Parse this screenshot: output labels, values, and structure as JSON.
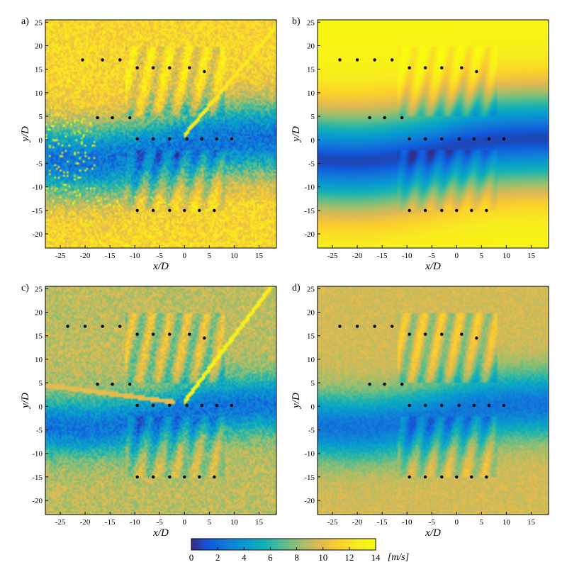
{
  "chart_data": {
    "type": "heatmap",
    "colormap": "parula",
    "colorbar": {
      "ticks": [
        "0",
        "2",
        "4",
        "6",
        "8",
        "10",
        "12",
        "14"
      ],
      "range": [
        0,
        14
      ],
      "unit_label": "[m/s]"
    },
    "shared_axes": {
      "xlabel": "x/D",
      "ylabel": "y/D",
      "xlim": [
        -28,
        18.5
      ],
      "ylim": [
        -23,
        25.5
      ],
      "xticks": [
        -25,
        -20,
        -15,
        -10,
        -5,
        0,
        5,
        10,
        15
      ],
      "yticks": [
        -20,
        -15,
        -10,
        -5,
        0,
        5,
        10,
        15,
        20,
        25
      ]
    },
    "panels": [
      {
        "label": "a)",
        "variant": "noisy-wide",
        "turbines": [
          [
            -20.5,
            17
          ],
          [
            -16.5,
            17
          ],
          [
            -13,
            17
          ],
          [
            -9.5,
            15.3
          ],
          [
            -6.3,
            15.3
          ],
          [
            -3,
            15.3
          ],
          [
            1,
            15.3
          ],
          [
            4,
            14.5
          ],
          [
            -17.5,
            4.7
          ],
          [
            -14.5,
            4.7
          ],
          [
            -11,
            4.7
          ],
          [
            -9.5,
            0.2
          ],
          [
            -6.3,
            0.2
          ],
          [
            -3,
            0.2
          ],
          [
            0.5,
            0.2
          ],
          [
            3.5,
            0.2
          ],
          [
            6.5,
            0.2
          ],
          [
            9.5,
            0.2
          ],
          [
            -9.5,
            -15
          ],
          [
            -6.3,
            -15
          ],
          [
            -3,
            -15
          ],
          [
            0,
            -15
          ],
          [
            3,
            -15
          ],
          [
            6,
            -15
          ]
        ]
      },
      {
        "label": "b)",
        "variant": "smooth",
        "turbines": [
          [
            -23.5,
            17
          ],
          [
            -20,
            17
          ],
          [
            -16.5,
            17
          ],
          [
            -13,
            17
          ],
          [
            -9.5,
            15.3
          ],
          [
            -6.3,
            15.3
          ],
          [
            -3,
            15.3
          ],
          [
            1,
            15.3
          ],
          [
            4,
            14.5
          ],
          [
            -17.5,
            4.7
          ],
          [
            -14.5,
            4.7
          ],
          [
            -11,
            4.7
          ],
          [
            -9.5,
            0.2
          ],
          [
            -6.3,
            0.2
          ],
          [
            -3,
            0.2
          ],
          [
            0.5,
            0.2
          ],
          [
            3.5,
            0.2
          ],
          [
            6.5,
            0.2
          ],
          [
            9.5,
            0.2
          ],
          [
            -9.5,
            -15
          ],
          [
            -6.3,
            -15
          ],
          [
            -3,
            -15
          ],
          [
            0,
            -15
          ],
          [
            3,
            -15
          ],
          [
            6,
            -15
          ]
        ]
      },
      {
        "label": "c)",
        "variant": "noisy",
        "turbines": [
          [
            -23.5,
            17
          ],
          [
            -20,
            17
          ],
          [
            -16.5,
            17
          ],
          [
            -13,
            17
          ],
          [
            -9.5,
            15.3
          ],
          [
            -6.3,
            15.3
          ],
          [
            -3,
            15.3
          ],
          [
            1,
            15.3
          ],
          [
            4,
            14.5
          ],
          [
            -17.5,
            4.7
          ],
          [
            -14.5,
            4.7
          ],
          [
            -11,
            4.7
          ],
          [
            -9.5,
            0.2
          ],
          [
            -6.3,
            0.2
          ],
          [
            -3,
            0.2
          ],
          [
            0.5,
            0.2
          ],
          [
            3.5,
            0.2
          ],
          [
            6.5,
            0.2
          ],
          [
            9.5,
            0.2
          ],
          [
            -9.5,
            -15
          ],
          [
            -6.3,
            -15
          ],
          [
            -3,
            -15
          ],
          [
            0,
            -15
          ],
          [
            3,
            -15
          ],
          [
            6,
            -15
          ]
        ]
      },
      {
        "label": "d)",
        "variant": "moderate",
        "turbines": [
          [
            -23.5,
            17
          ],
          [
            -20,
            17
          ],
          [
            -16.5,
            17
          ],
          [
            -13,
            17
          ],
          [
            -9.5,
            15.3
          ],
          [
            -6.3,
            15.3
          ],
          [
            -3,
            15.3
          ],
          [
            1,
            15.3
          ],
          [
            4,
            14.5
          ],
          [
            -17.5,
            4.7
          ],
          [
            -14.5,
            4.7
          ],
          [
            -11,
            4.7
          ],
          [
            -9.5,
            0.2
          ],
          [
            -6.3,
            0.2
          ],
          [
            -3,
            0.2
          ],
          [
            0.5,
            0.2
          ],
          [
            3.5,
            0.2
          ],
          [
            6.5,
            0.2
          ],
          [
            9.5,
            0.2
          ],
          [
            -9.5,
            -15
          ],
          [
            -6.3,
            -15
          ],
          [
            -3,
            -15
          ],
          [
            0,
            -15
          ],
          [
            3,
            -15
          ],
          [
            6,
            -15
          ]
        ]
      }
    ]
  }
}
